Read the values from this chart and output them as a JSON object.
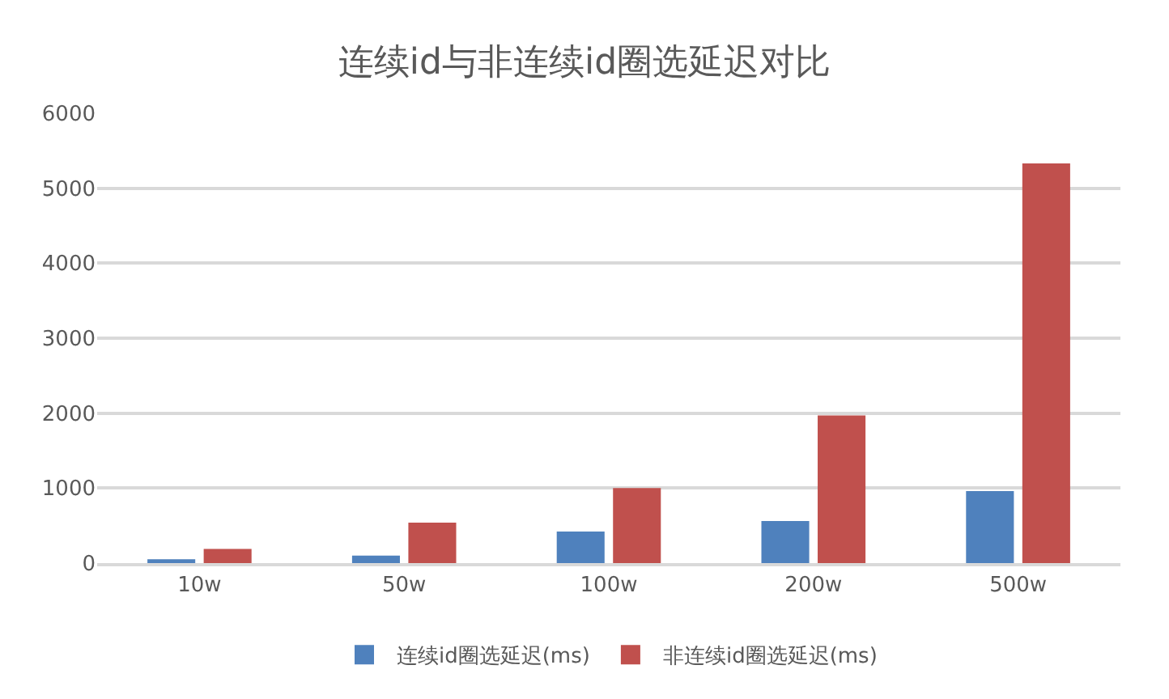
{
  "chart_data": {
    "type": "bar",
    "title": "连续id与非连续id圈选延迟对比",
    "categories": [
      "10w",
      "50w",
      "100w",
      "200w",
      "500w"
    ],
    "series": [
      {
        "name": "连续id圈选延迟(ms)",
        "color": "#4f81bd",
        "values": [
          50,
          100,
          420,
          560,
          960
        ]
      },
      {
        "name": "非连续id圈选延迟(ms)",
        "color": "#c0504d",
        "values": [
          190,
          540,
          1000,
          1970,
          5330
        ]
      }
    ],
    "ylim": [
      0,
      6000
    ],
    "yticks": [
      0,
      1000,
      2000,
      3000,
      4000,
      5000,
      6000
    ],
    "grid": "y",
    "legend": "bottom"
  }
}
